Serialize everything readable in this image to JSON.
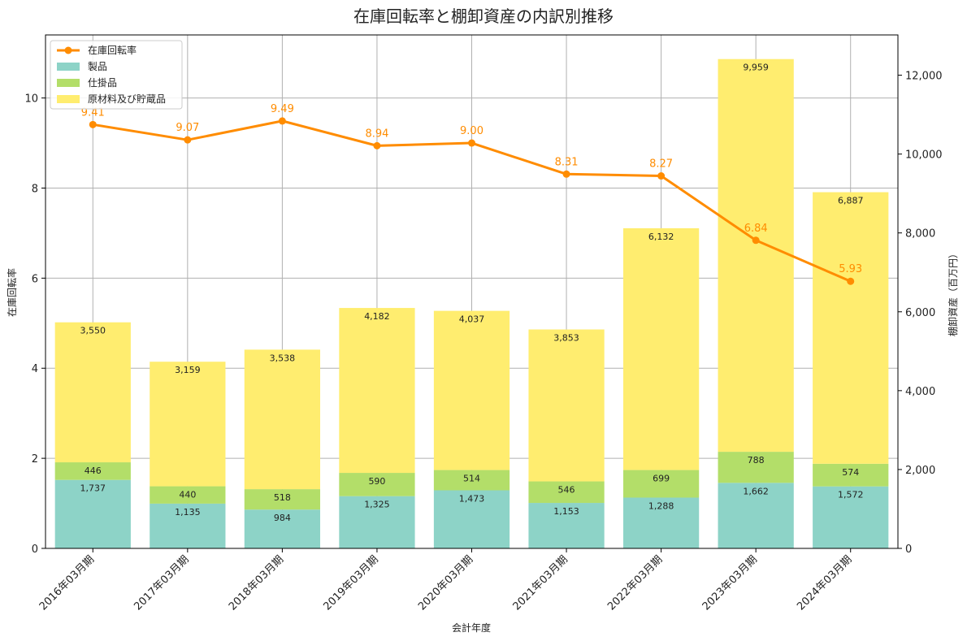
{
  "chart_data": {
    "type": "bar",
    "title": "在庫回転率と棚卸資産の内訳別推移",
    "xlabel": "会計年度",
    "ylabel_left": "在庫回転率",
    "ylabel_right": "棚卸資産（百万円）",
    "categories": [
      "2016年03月期",
      "2017年03月期",
      "2018年03月期",
      "2019年03月期",
      "2020年03月期",
      "2021年03月期",
      "2022年03月期",
      "2023年03月期",
      "2024年03月期"
    ],
    "series": [
      {
        "name": "製品",
        "kind": "stacked-bar",
        "axis": "right",
        "color": "#8dd3c7",
        "values": [
          1737,
          1135,
          984,
          1325,
          1473,
          1153,
          1288,
          1662,
          1572
        ]
      },
      {
        "name": "仕掛品",
        "kind": "stacked-bar",
        "axis": "right",
        "color": "#b3de69",
        "values": [
          446,
          440,
          518,
          590,
          514,
          546,
          699,
          788,
          574
        ]
      },
      {
        "name": "原材料及び貯蔵品",
        "kind": "stacked-bar",
        "axis": "right",
        "color": "#ffed6f",
        "values": [
          3550,
          3159,
          3538,
          4182,
          4037,
          3853,
          6132,
          9959,
          6887
        ]
      },
      {
        "name": "在庫回転率",
        "kind": "line",
        "axis": "left",
        "color": "#ff8c00",
        "values": [
          9.41,
          9.07,
          9.49,
          8.94,
          9.0,
          8.31,
          8.27,
          6.84,
          5.93
        ]
      }
    ],
    "legend_order": [
      "在庫回転率",
      "製品",
      "仕掛品",
      "原材料及び貯蔵品"
    ],
    "left_ylim": [
      0,
      11.4
    ],
    "left_yticks": [
      0,
      2,
      4,
      6,
      8,
      10
    ],
    "right_ylim": [
      0,
      13021
    ],
    "right_yticks": [
      0,
      2000,
      4000,
      6000,
      8000,
      10000,
      12000
    ],
    "grid": true,
    "legend_position": "top-left"
  }
}
